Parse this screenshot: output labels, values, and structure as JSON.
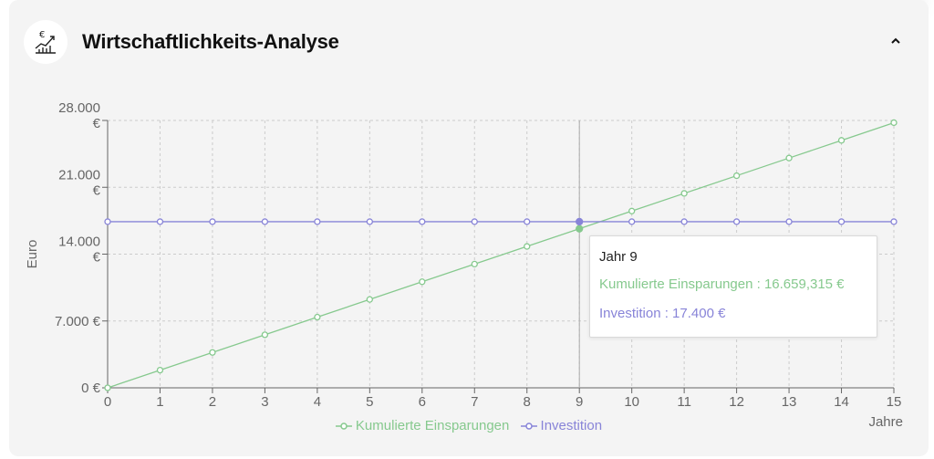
{
  "header": {
    "title": "Wirtschaftlichkeits-Analyse",
    "icon": "euro-chart-icon",
    "collapse_icon": "chevron-up-icon"
  },
  "tooltip": {
    "title": "Jahr 9",
    "row1": "Kumulierte Einsparungen : 16.659,315 €",
    "row2": "Investition : 17.400 €"
  },
  "legend": {
    "items": [
      "Kumulierte Einsparungen",
      "Investition"
    ]
  },
  "colors": {
    "savings": "#86c98e",
    "investment": "#8884d8",
    "grid": "#cccccc",
    "axis": "#666666"
  },
  "chart_data": {
    "type": "line",
    "x": [
      0,
      1,
      2,
      3,
      4,
      5,
      6,
      7,
      8,
      9,
      10,
      11,
      12,
      13,
      14,
      15
    ],
    "xlabel": "Jahre",
    "ylabel": "Euro",
    "ylim": [
      0,
      28000
    ],
    "yticks": [
      0,
      7000,
      14000,
      21000,
      28000
    ],
    "ytick_labels": [
      "0 €",
      "7.000 €",
      "14.000 €",
      "21.000 €",
      "28.000 €"
    ],
    "series": [
      {
        "name": "Kumulierte Einsparungen",
        "values": [
          0,
          1851.035,
          3702.07,
          5553.105,
          7404.14,
          9255.175,
          11106.21,
          12957.245,
          14808.28,
          16659.315,
          18510.35,
          20361.385,
          22212.42,
          24063.455,
          25914.49,
          27765.525
        ]
      },
      {
        "name": "Investition",
        "values": [
          17400,
          17400,
          17400,
          17400,
          17400,
          17400,
          17400,
          17400,
          17400,
          17400,
          17400,
          17400,
          17400,
          17400,
          17400,
          17400
        ]
      }
    ],
    "active_x": 9,
    "grid": true,
    "legend_position": "bottom"
  }
}
